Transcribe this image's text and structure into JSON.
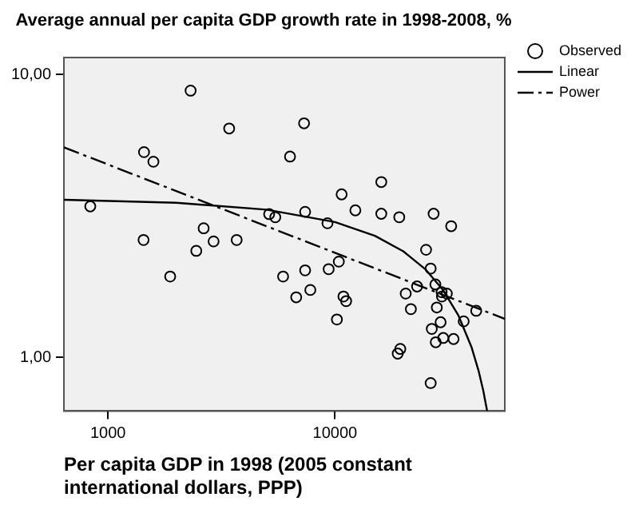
{
  "chart_data": {
    "type": "scatter",
    "title": "Average annual per capita GDP growth rate in 1998-2008, %",
    "xlabel": "Per capita GDP in 1998 (2005 constant international dollars, PPP)",
    "log": "xy",
    "grid": false,
    "legend": "right",
    "marker": "circle",
    "xlim": [
      640,
      56000
    ],
    "xticks": [
      1000,
      10000
    ],
    "ylim": [
      0.645,
      11.5
    ],
    "yticks": [
      {
        "value": 1,
        "label": "1,00"
      },
      {
        "value": 10,
        "label": "10,00"
      }
    ],
    "series": [
      {
        "name": "Observed",
        "color": "#000000",
        "x": [
          836,
          2313,
          1442,
          1586,
          3420,
          1435,
          1880,
          2640,
          2450,
          2920,
          3690,
          7310,
          6340,
          5130,
          5460,
          7390,
          7390,
          5910,
          6750,
          7790,
          16000,
          10700,
          12300,
          16000,
          19200,
          27200,
          32500,
          9270,
          25200,
          26400,
          10400,
          9380,
          10900,
          11200,
          10200,
          23000,
          20500,
          21600,
          27700,
          29500,
          31100,
          29600,
          28100,
          29200,
          26700,
          27800,
          30000,
          33300,
          36900,
          41900,
          19400,
          18900,
          26400
        ],
        "values": [
          3.42,
          8.78,
          5.32,
          4.92,
          6.45,
          2.6,
          1.93,
          2.86,
          2.38,
          2.57,
          2.6,
          6.73,
          5.13,
          3.21,
          3.13,
          3.27,
          2.03,
          1.93,
          1.63,
          1.73,
          4.17,
          3.77,
          3.31,
          3.22,
          3.13,
          3.22,
          2.91,
          2.98,
          2.4,
          2.06,
          2.18,
          2.05,
          1.64,
          1.58,
          1.36,
          1.78,
          1.68,
          1.48,
          1.81,
          1.7,
          1.68,
          1.64,
          1.5,
          1.33,
          1.26,
          1.13,
          1.17,
          1.16,
          1.34,
          1.46,
          1.07,
          1.03,
          0.81
        ]
      },
      {
        "name": "Linear",
        "type": "line",
        "color": "#000000",
        "line_style": "solid",
        "marker": "none",
        "x": [
          640,
          2000,
          5000,
          10000,
          15000,
          20000,
          25000,
          30000,
          35000,
          40000,
          43000,
          45000,
          46800
        ],
        "values": [
          3.61,
          3.52,
          3.33,
          3.01,
          2.69,
          2.37,
          2.05,
          1.725,
          1.404,
          1.083,
          0.89,
          0.762,
          0.646
        ]
      },
      {
        "name": "Power",
        "type": "line",
        "color": "#000000",
        "line_style": "dashed",
        "marker": "none",
        "x": [
          640,
          56000
        ],
        "values": [
          5.53,
          1.367
        ]
      }
    ]
  }
}
